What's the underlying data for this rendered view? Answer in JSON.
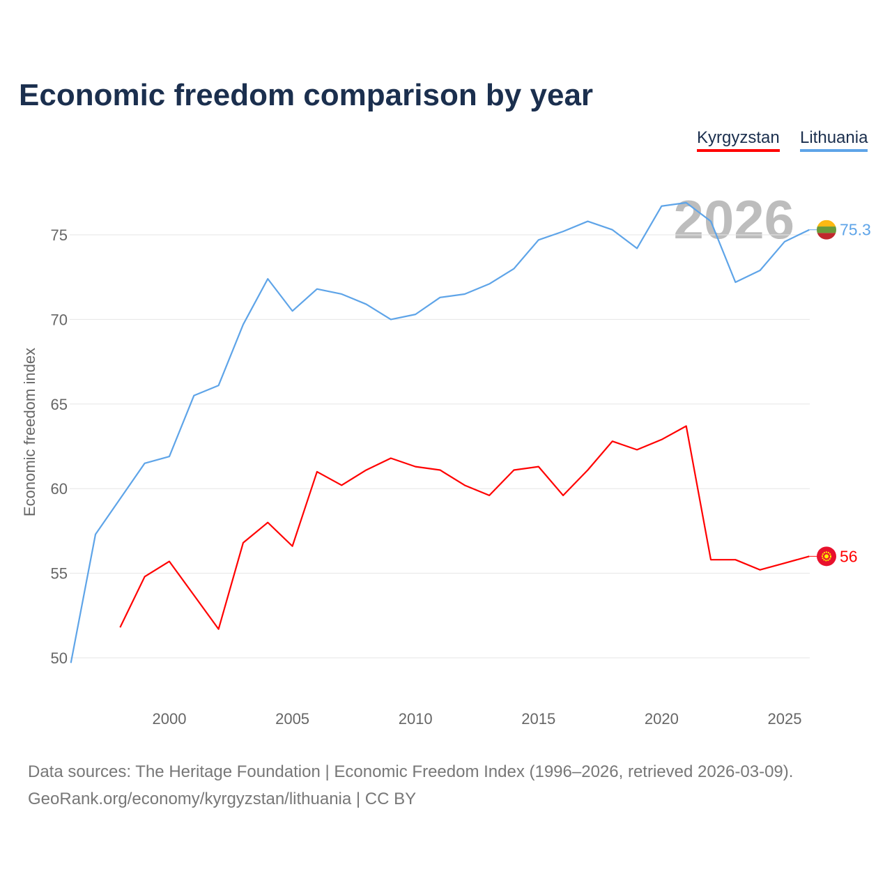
{
  "chart_data": {
    "type": "line",
    "title": "Economic freedom comparison by year",
    "xlabel": "",
    "ylabel": "Economic freedom index",
    "xlim": [
      1996,
      2026
    ],
    "ylim": [
      50,
      75
    ],
    "yticks": [
      50,
      55,
      60,
      65,
      70,
      75
    ],
    "xticks": [
      2000,
      2005,
      2010,
      2015,
      2020,
      2025
    ],
    "grid": true,
    "legend_position": "top-right",
    "year_watermark": "2026",
    "series": [
      {
        "name": "Kyrgyzstan",
        "color": "#ff0000",
        "end_label": "56",
        "x": [
          1998,
          1999,
          2000,
          2001,
          2002,
          2003,
          2004,
          2005,
          2006,
          2007,
          2008,
          2009,
          2010,
          2011,
          2012,
          2013,
          2014,
          2015,
          2016,
          2017,
          2018,
          2019,
          2020,
          2021,
          2022,
          2023,
          2024,
          2025,
          2026
        ],
        "values": [
          51.8,
          54.8,
          55.7,
          53.7,
          51.7,
          56.8,
          58.0,
          56.6,
          61.0,
          60.2,
          61.1,
          61.8,
          61.3,
          61.1,
          60.2,
          59.6,
          61.1,
          61.3,
          59.6,
          61.1,
          62.8,
          62.3,
          62.9,
          63.7,
          55.8,
          55.8,
          55.2,
          55.6,
          56.0
        ]
      },
      {
        "name": "Lithuania",
        "color": "#5ea4e8",
        "end_label": "75.3",
        "x": [
          1996,
          1997,
          1998,
          1999,
          2000,
          2001,
          2002,
          2003,
          2004,
          2005,
          2006,
          2007,
          2008,
          2009,
          2010,
          2011,
          2012,
          2013,
          2014,
          2015,
          2016,
          2017,
          2018,
          2019,
          2020,
          2021,
          2022,
          2023,
          2024,
          2025,
          2026
        ],
        "values": [
          49.7,
          57.3,
          59.4,
          61.5,
          61.9,
          65.5,
          66.1,
          69.7,
          72.4,
          70.5,
          71.8,
          71.5,
          70.9,
          70.0,
          70.3,
          71.3,
          71.5,
          72.1,
          73.0,
          74.7,
          75.2,
          75.8,
          75.3,
          74.2,
          76.7,
          76.9,
          75.8,
          72.2,
          72.9,
          74.6,
          75.3
        ]
      }
    ]
  },
  "footer": {
    "line1": "Data sources: The Heritage Foundation | Economic Freedom Index (1996–2026, retrieved 2026-03-09).",
    "line2": "GeoRank.org/economy/kyrgyzstan/lithuania | CC BY"
  }
}
